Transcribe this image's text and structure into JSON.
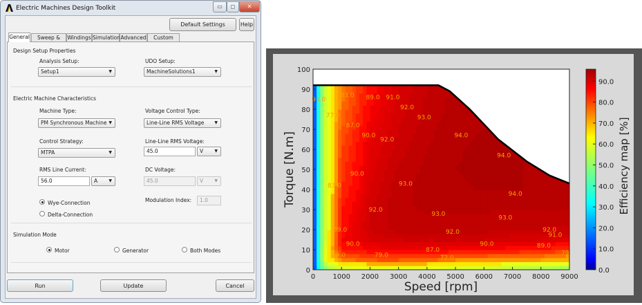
{
  "window": {
    "title": "Electric Machines Design Toolkit",
    "controls": [
      "minimize",
      "maximize",
      "close"
    ]
  },
  "toolbar": {
    "default_settings": "Default Settings",
    "help": "Help"
  },
  "tabs": [
    {
      "label": "General",
      "active": true
    },
    {
      "label": "Sweep & Map"
    },
    {
      "label": "Windings"
    },
    {
      "label": "Simulation"
    },
    {
      "label": "Advanced"
    },
    {
      "label": "Custom Loss"
    }
  ],
  "design_setup": {
    "title": "Design Setup Properties",
    "analysis_label": "Analysis Setup:",
    "analysis_value": "Setup1",
    "udo_label": "UDO Setup:",
    "udo_value": "MachineSolutions1"
  },
  "machine": {
    "title": "Electric Machine Characteristics",
    "machine_type_label": "Machine Type:",
    "machine_type_value": "PM Synchronous Machine",
    "voltage_control_label": "Voltage Control Type:",
    "voltage_control_value": "Line-Line RMS Voltage",
    "control_strategy_label": "Control Strategy:",
    "control_strategy_value": "MTPA",
    "ll_voltage_label": "Line-Line RMS Voltage:",
    "ll_voltage_value": "45.0",
    "ll_voltage_unit": "V",
    "current_label": "RMS Line Current:",
    "current_value": "56.0",
    "current_unit": "A",
    "dc_voltage_label": "DC Voltage:",
    "dc_voltage_value": "45.0",
    "dc_voltage_unit": "V",
    "wye_label": "Wye-Connection",
    "delta_label": "Delta-Connection",
    "connection_selected": "wye",
    "modulation_label": "Modulation Index:",
    "modulation_value": "1.0"
  },
  "simulation_mode": {
    "title": "Simulation Mode",
    "options": [
      "Motor",
      "Generator",
      "Both Modes"
    ],
    "selected": "Motor"
  },
  "footer": {
    "run": "Run",
    "update": "Update",
    "cancel": "Cancel"
  },
  "chart_data": {
    "type": "heatmap",
    "xlabel": "Speed [rpm]",
    "ylabel": "Torque [N.m]",
    "colorbar_label": "Efficiency map [%]",
    "xlim": [
      0,
      9000
    ],
    "ylim": [
      0,
      100
    ],
    "clim": [
      0,
      95.7
    ],
    "colormap": "jet",
    "xticks": [
      "0",
      "1000",
      "2000",
      "3000",
      "4000",
      "5000",
      "6000",
      "7000",
      "8000",
      "9000"
    ],
    "yticks": [
      "0",
      "10",
      "20",
      "30",
      "40",
      "50",
      "60",
      "70",
      "80",
      "90",
      "100"
    ],
    "colorbar_ticks": [
      "0.0",
      "10.0",
      "20.0",
      "30.0",
      "40.0",
      "50.0",
      "60.0",
      "70.0",
      "80.0",
      "90.0"
    ],
    "envelope": [
      [
        0,
        92
      ],
      [
        4400,
        92
      ],
      [
        4800,
        89
      ],
      [
        5500,
        80
      ],
      [
        6500,
        65
      ],
      [
        7500,
        54
      ],
      [
        8300,
        47
      ],
      [
        9000,
        43
      ]
    ],
    "grid_speed": [
      0,
      250,
      500,
      1000,
      2000,
      3000,
      4000,
      5000,
      6000,
      7000,
      8000,
      9000
    ],
    "grid_torque": [
      0,
      5,
      10,
      15,
      20,
      30,
      40,
      50,
      60,
      70,
      80,
      92
    ],
    "efficiency": [
      [
        5,
        40,
        50,
        55,
        58,
        58,
        58,
        55,
        55,
        52,
        50,
        48
      ],
      [
        5,
        45,
        65,
        75,
        79,
        79,
        78,
        75,
        74,
        72,
        72,
        70
      ],
      [
        5,
        45,
        65,
        85,
        87,
        88,
        88,
        87,
        87,
        86,
        85,
        82
      ],
      [
        5,
        45,
        62,
        87,
        90,
        91,
        91,
        91,
        91,
        90,
        90,
        89
      ],
      [
        5,
        45,
        62,
        86,
        91,
        92.5,
        92.5,
        92.5,
        92.3,
        92.2,
        92,
        91.5
      ],
      [
        5,
        45,
        62,
        85,
        91,
        92.8,
        93.1,
        93.1,
        93.1,
        93.0,
        93.0,
        93.1
      ],
      [
        5,
        45,
        62,
        83,
        90,
        92.7,
        93.4,
        93.8,
        94.1,
        94.1,
        93.8,
        93.5
      ],
      [
        5,
        45,
        62,
        82,
        89.5,
        92.2,
        93.3,
        94.0,
        94.2,
        94.1,
        93.8,
        93.5
      ],
      [
        5,
        45,
        62,
        81,
        89,
        91.5,
        93.0,
        93.9,
        94.2,
        94.1,
        93.8,
        93.5
      ],
      [
        5,
        45,
        62,
        79,
        88,
        91,
        92.6,
        93.8,
        94,
        93.8,
        93.5,
        93.2
      ],
      [
        5,
        45,
        62,
        77,
        87,
        90.5,
        92.2,
        93.5,
        93.8,
        93.6,
        93.4,
        93.2
      ],
      [
        5,
        45,
        62,
        75,
        86,
        90,
        92,
        93.3,
        93.6,
        93.5,
        93.3,
        93.2
      ]
    ],
    "contour_labels": [
      {
        "text": "91.0",
        "speed": 200,
        "torque": 85
      },
      {
        "text": "83.0",
        "speed": 1200,
        "torque": 87
      },
      {
        "text": "77.0",
        "speed": 700,
        "torque": 77
      },
      {
        "text": "87.0",
        "speed": 1400,
        "torque": 72
      },
      {
        "text": "89.0",
        "speed": 2100,
        "torque": 86
      },
      {
        "text": "91.0",
        "speed": 2800,
        "torque": 86
      },
      {
        "text": "92.0",
        "speed": 3300,
        "torque": 81
      },
      {
        "text": "93.0",
        "speed": 3900,
        "torque": 76
      },
      {
        "text": "90.0",
        "speed": 1950,
        "torque": 67
      },
      {
        "text": "92.0",
        "speed": 2600,
        "torque": 65
      },
      {
        "text": "94.0",
        "speed": 5200,
        "torque": 67
      },
      {
        "text": "94.0",
        "speed": 6700,
        "torque": 57
      },
      {
        "text": "90.0",
        "speed": 1550,
        "torque": 48
      },
      {
        "text": "83.0",
        "speed": 750,
        "torque": 42
      },
      {
        "text": "93.0",
        "speed": 3250,
        "torque": 43
      },
      {
        "text": "94.0",
        "speed": 7100,
        "torque": 38
      },
      {
        "text": "92.0",
        "speed": 2200,
        "torque": 30
      },
      {
        "text": "93.0",
        "speed": 4400,
        "torque": 28
      },
      {
        "text": "93.0",
        "speed": 6750,
        "torque": 26
      },
      {
        "text": "89.0",
        "speed": 950,
        "torque": 20
      },
      {
        "text": "92.0",
        "speed": 4900,
        "torque": 19
      },
      {
        "text": "92.0",
        "speed": 8300,
        "torque": 20
      },
      {
        "text": "91.0",
        "speed": 8500,
        "torque": 17.5
      },
      {
        "text": "90.0",
        "speed": 1400,
        "torque": 13
      },
      {
        "text": "90.0",
        "speed": 6100,
        "torque": 13
      },
      {
        "text": "87.0",
        "speed": 4200,
        "torque": 10
      },
      {
        "text": "89.0",
        "speed": 8100,
        "torque": 12
      },
      {
        "text": "79.0",
        "speed": 900,
        "torque": 7.5
      },
      {
        "text": "79.0",
        "speed": 2400,
        "torque": 7.5
      },
      {
        "text": "72.0",
        "speed": 4700,
        "torque": 6
      },
      {
        "text": "79",
        "speed": 8850,
        "torque": 8.5
      }
    ]
  }
}
